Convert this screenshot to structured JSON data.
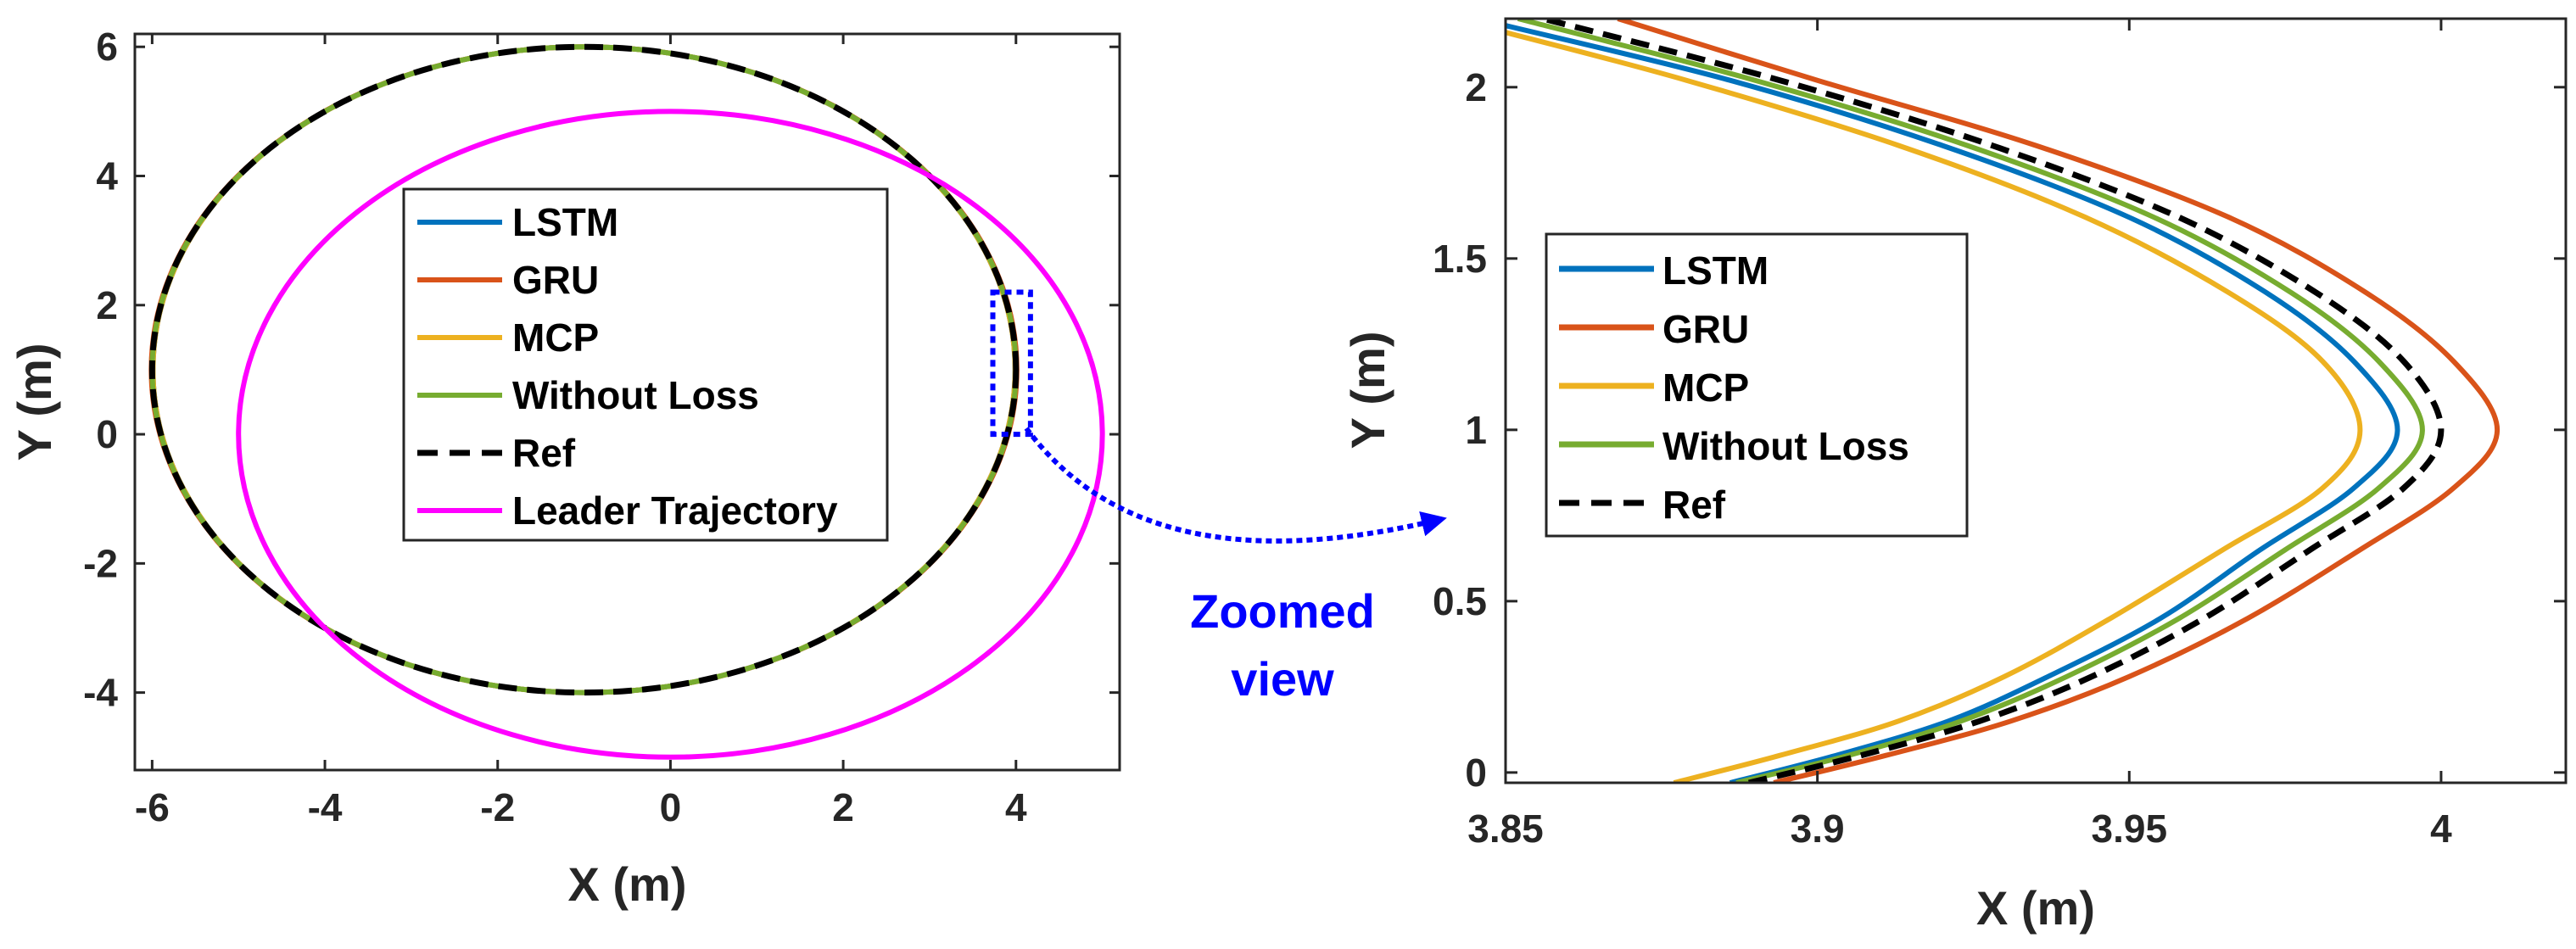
{
  "colors": {
    "lstm": "#0072bd",
    "gru": "#d95319",
    "mcp": "#edb120",
    "without_loss": "#77ac30",
    "ref": "#000000",
    "leader": "#ff00ff",
    "annotation": "#0000ff",
    "axis": "#262626"
  },
  "annotation": {
    "line1": "Zoomed",
    "line2": "view"
  },
  "chart_data": [
    {
      "type": "line",
      "panel": "overview",
      "xlabel": "X (m)",
      "ylabel": "Y (m)",
      "xlim": [
        -6.2,
        5.2
      ],
      "ylim": [
        -5.2,
        6.2
      ],
      "xticks": [
        -6,
        -4,
        -2,
        0,
        2,
        4
      ],
      "yticks": [
        -4,
        -2,
        0,
        2,
        4,
        6
      ],
      "legend_position": "center-right",
      "series": [
        {
          "name": "LSTM",
          "key": "lstm",
          "shape": "ellipse",
          "center": [
            -1,
            1
          ],
          "radii": [
            4.99,
            5
          ],
          "style": "solid"
        },
        {
          "name": "GRU",
          "key": "gru",
          "shape": "ellipse",
          "center": [
            -1,
            1
          ],
          "radii": [
            5.01,
            5
          ],
          "style": "solid"
        },
        {
          "name": "MCP",
          "key": "mcp",
          "shape": "ellipse",
          "center": [
            -1,
            1
          ],
          "radii": [
            4.99,
            5
          ],
          "style": "solid"
        },
        {
          "name": "Without Loss",
          "key": "without_loss",
          "shape": "ellipse",
          "center": [
            -1,
            1
          ],
          "radii": [
            5,
            5
          ],
          "style": "solid"
        },
        {
          "name": "Ref",
          "key": "ref",
          "shape": "ellipse",
          "center": [
            -1,
            1
          ],
          "radii": [
            5,
            5
          ],
          "style": "dashed"
        },
        {
          "name": "Leader Trajectory",
          "key": "leader",
          "shape": "ellipse",
          "center": [
            0,
            0
          ],
          "radii": [
            5,
            5
          ],
          "style": "solid"
        }
      ],
      "zoom_box": {
        "x": [
          3.85,
          4.05
        ],
        "y": [
          0,
          2.2
        ]
      }
    },
    {
      "type": "line",
      "panel": "zoomed",
      "xlabel": "X (m)",
      "ylabel": "Y (m)",
      "xlim": [
        3.85,
        4.02
      ],
      "ylim": [
        -0.03,
        2.2
      ],
      "xticks": [
        3.85,
        3.9,
        3.95,
        4
      ],
      "xtick_labels": [
        "3.85",
        "3.9",
        "3.95",
        "4"
      ],
      "yticks": [
        0,
        0.5,
        1,
        1.5,
        2
      ],
      "ytick_labels": [
        "0",
        "0.5",
        "1",
        "1.5",
        "2"
      ],
      "legend_position": "center-left",
      "series": [
        {
          "name": "LSTM",
          "key": "lstm",
          "style": "solid",
          "points": [
            [
              3.886,
              -0.03
            ],
            [
              3.903,
              0.05
            ],
            [
              3.921,
              0.15
            ],
            [
              3.937,
              0.28
            ],
            [
              3.955,
              0.45
            ],
            [
              3.971,
              0.65
            ],
            [
              3.986,
              0.83
            ],
            [
              3.993,
              1.0
            ],
            [
              3.986,
              1.2
            ],
            [
              3.972,
              1.4
            ],
            [
              3.95,
              1.62
            ],
            [
              3.92,
              1.83
            ],
            [
              3.886,
              2.02
            ],
            [
              3.85,
              2.18
            ]
          ]
        },
        {
          "name": "GRU",
          "key": "gru",
          "style": "solid",
          "points": [
            [
              3.893,
              -0.03
            ],
            [
              3.911,
              0.05
            ],
            [
              3.931,
              0.15
            ],
            [
              3.95,
              0.28
            ],
            [
              3.969,
              0.45
            ],
            [
              3.987,
              0.65
            ],
            [
              4.002,
              0.83
            ],
            [
              4.009,
              1.0
            ],
            [
              4.002,
              1.2
            ],
            [
              3.988,
              1.4
            ],
            [
              3.966,
              1.62
            ],
            [
              3.935,
              1.83
            ],
            [
              3.9,
              2.02
            ],
            [
              3.868,
              2.2
            ]
          ]
        },
        {
          "name": "MCP",
          "key": "mcp",
          "style": "solid",
          "points": [
            [
              3.877,
              -0.03
            ],
            [
              3.894,
              0.05
            ],
            [
              3.913,
              0.15
            ],
            [
              3.93,
              0.28
            ],
            [
              3.947,
              0.45
            ],
            [
              3.965,
              0.65
            ],
            [
              3.981,
              0.83
            ],
            [
              3.987,
              1.0
            ],
            [
              3.981,
              1.2
            ],
            [
              3.966,
              1.4
            ],
            [
              3.943,
              1.62
            ],
            [
              3.913,
              1.83
            ],
            [
              3.879,
              2.02
            ],
            [
              3.85,
              2.16
            ]
          ]
        },
        {
          "name": "Without Loss",
          "key": "without_loss",
          "style": "solid",
          "points": [
            [
              3.887,
              -0.03
            ],
            [
              3.905,
              0.05
            ],
            [
              3.923,
              0.15
            ],
            [
              3.94,
              0.28
            ],
            [
              3.958,
              0.45
            ],
            [
              3.975,
              0.65
            ],
            [
              3.99,
              0.83
            ],
            [
              3.997,
              1.0
            ],
            [
              3.99,
              1.2
            ],
            [
              3.976,
              1.4
            ],
            [
              3.954,
              1.62
            ],
            [
              3.924,
              1.83
            ],
            [
              3.89,
              2.02
            ],
            [
              3.852,
              2.2
            ]
          ]
        },
        {
          "name": "Ref",
          "key": "ref",
          "style": "dashed",
          "points": [
            [
              3.889,
              -0.03
            ],
            [
              3.907,
              0.05
            ],
            [
              3.926,
              0.15
            ],
            [
              3.944,
              0.28
            ],
            [
              3.962,
              0.45
            ],
            [
              3.979,
              0.65
            ],
            [
              3.994,
              0.83
            ],
            [
              4.0,
              1.0
            ],
            [
              3.994,
              1.2
            ],
            [
              3.98,
              1.4
            ],
            [
              3.958,
              1.62
            ],
            [
              3.928,
              1.83
            ],
            [
              3.894,
              2.02
            ],
            [
              3.856,
              2.2
            ]
          ]
        }
      ]
    }
  ]
}
